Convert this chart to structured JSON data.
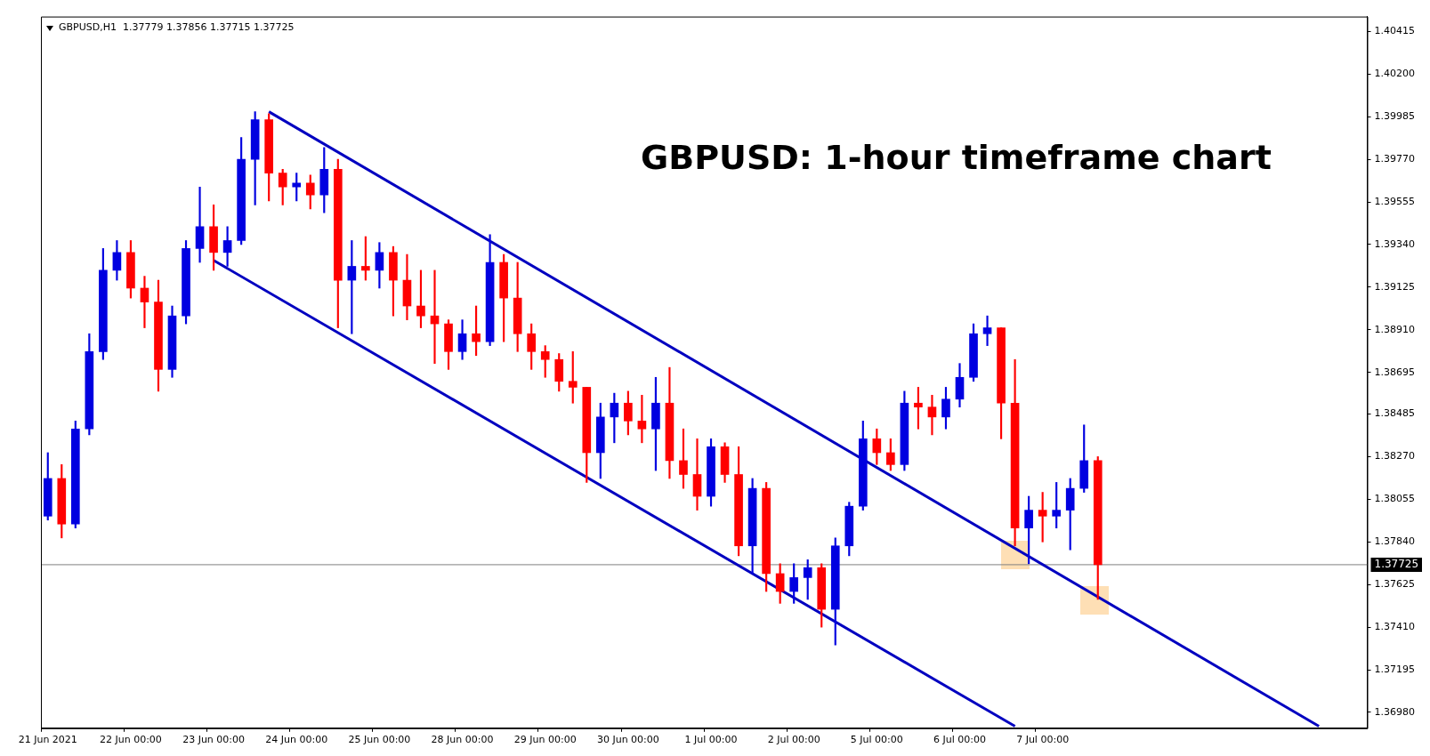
{
  "chart_data": {
    "type": "candlestick",
    "title": "GBPUSD: 1-hour timeframe chart",
    "subtitle": "GBPUSD,H1  1.37779 1.37856 1.37715 1.37725",
    "categories": [
      "21 Jun 2021",
      null,
      null,
      null,
      null,
      null,
      "22 Jun 00:00",
      null,
      null,
      null,
      null,
      null,
      "23 Jun 00:00",
      null,
      null,
      null,
      null,
      null,
      "24 Jun 00:00",
      null,
      null,
      null,
      null,
      null,
      "25 Jun 00:00",
      null,
      null,
      null,
      null,
      null,
      "28 Jun 00:00",
      null,
      null,
      null,
      null,
      null,
      "29 Jun 00:00",
      null,
      null,
      null,
      null,
      null,
      "30 Jun 00:00",
      null,
      null,
      null,
      null,
      null,
      "1 Jul 00:00",
      null,
      null,
      null,
      null,
      null,
      "2 Jul 00:00",
      null,
      null,
      null,
      null,
      null,
      "5 Jul 00:00",
      null,
      null,
      null,
      null,
      null,
      "6 Jul 00:00",
      null,
      null,
      null,
      null,
      null,
      "7 Jul 00:00",
      null,
      null,
      null,
      null,
      null,
      null,
      null,
      null,
      null,
      null,
      null,
      null,
      null,
      null,
      null,
      null,
      null,
      null,
      null,
      null,
      null,
      null,
      null
    ],
    "ohlc": [
      [
        1.3797,
        1.3829,
        1.3795,
        1.3816
      ],
      [
        1.3816,
        1.3823,
        1.3786,
        1.3793
      ],
      [
        1.3793,
        1.3845,
        1.3791,
        1.3841
      ],
      [
        1.3841,
        1.3889,
        1.3838,
        1.388
      ],
      [
        1.388,
        1.3932,
        1.3876,
        1.3921
      ],
      [
        1.3921,
        1.3936,
        1.3916,
        1.393
      ],
      [
        1.393,
        1.3936,
        1.3907,
        1.3912
      ],
      [
        1.3912,
        1.3918,
        1.3892,
        1.3905
      ],
      [
        1.3905,
        1.3916,
        1.386,
        1.3871
      ],
      [
        1.3871,
        1.3903,
        1.3867,
        1.3898
      ],
      [
        1.3898,
        1.3936,
        1.3894,
        1.3932
      ],
      [
        1.3932,
        1.3963,
        1.3925,
        1.3943
      ],
      [
        1.3943,
        1.3954,
        1.3921,
        1.393
      ],
      [
        1.393,
        1.3943,
        1.3923,
        1.3936
      ],
      [
        1.3936,
        1.3988,
        1.3934,
        1.3977
      ],
      [
        1.3977,
        1.4001,
        1.3954,
        1.3997
      ],
      [
        1.3997,
        1.4,
        1.3956,
        1.397
      ],
      [
        1.397,
        1.3972,
        1.3954,
        1.3963
      ],
      [
        1.3963,
        1.397,
        1.3956,
        1.3965
      ],
      [
        1.3965,
        1.3969,
        1.3952,
        1.3959
      ],
      [
        1.3959,
        1.3983,
        1.395,
        1.3972
      ],
      [
        1.3972,
        1.3977,
        1.3892,
        1.3916
      ],
      [
        1.3916,
        1.3936,
        1.3889,
        1.3923
      ],
      [
        1.3923,
        1.3938,
        1.3916,
        1.3921
      ],
      [
        1.3921,
        1.3935,
        1.3912,
        1.393
      ],
      [
        1.393,
        1.3933,
        1.3898,
        1.3916
      ],
      [
        1.3916,
        1.3929,
        1.3896,
        1.3903
      ],
      [
        1.3903,
        1.3921,
        1.3892,
        1.3898
      ],
      [
        1.3898,
        1.3921,
        1.3874,
        1.3894
      ],
      [
        1.3894,
        1.3896,
        1.3871,
        1.388
      ],
      [
        1.388,
        1.3896,
        1.3876,
        1.3889
      ],
      [
        1.3889,
        1.3903,
        1.3878,
        1.3885
      ],
      [
        1.3885,
        1.3939,
        1.3883,
        1.3925
      ],
      [
        1.3925,
        1.3929,
        1.3885,
        1.3907
      ],
      [
        1.3907,
        1.3925,
        1.388,
        1.3889
      ],
      [
        1.3889,
        1.3894,
        1.3871,
        1.388
      ],
      [
        1.388,
        1.3883,
        1.3867,
        1.3876
      ],
      [
        1.3876,
        1.3879,
        1.386,
        1.3865
      ],
      [
        1.3865,
        1.388,
        1.3854,
        1.3862
      ],
      [
        1.3862,
        1.3862,
        1.3814,
        1.3829
      ],
      [
        1.3829,
        1.3854,
        1.3816,
        1.3847
      ],
      [
        1.3847,
        1.3859,
        1.3834,
        1.3854
      ],
      [
        1.3854,
        1.386,
        1.3838,
        1.3845
      ],
      [
        1.3845,
        1.3858,
        1.3834,
        1.3841
      ],
      [
        1.3841,
        1.3867,
        1.382,
        1.3854
      ],
      [
        1.3854,
        1.3872,
        1.3816,
        1.3825
      ],
      [
        1.3825,
        1.3841,
        1.3811,
        1.3818
      ],
      [
        1.3818,
        1.3836,
        1.38,
        1.3807
      ],
      [
        1.3807,
        1.3836,
        1.3802,
        1.3832
      ],
      [
        1.3832,
        1.3834,
        1.3814,
        1.3818
      ],
      [
        1.3818,
        1.3832,
        1.3777,
        1.3782
      ],
      [
        1.3782,
        1.3816,
        1.3768,
        1.3811
      ],
      [
        1.3811,
        1.3814,
        1.3759,
        1.3768
      ],
      [
        1.3768,
        1.3773,
        1.3753,
        1.3759
      ],
      [
        1.3759,
        1.3773,
        1.3753,
        1.3766
      ],
      [
        1.3766,
        1.3775,
        1.3755,
        1.3771
      ],
      [
        1.3771,
        1.3773,
        1.3741,
        1.375
      ],
      [
        1.375,
        1.3786,
        1.3732,
        1.3782
      ],
      [
        1.3782,
        1.3804,
        1.3777,
        1.3802
      ],
      [
        1.3802,
        1.3845,
        1.38,
        1.3836
      ],
      [
        1.3836,
        1.3841,
        1.3823,
        1.3829
      ],
      [
        1.3829,
        1.3836,
        1.382,
        1.3823
      ],
      [
        1.3823,
        1.386,
        1.382,
        1.3854
      ],
      [
        1.3854,
        1.3862,
        1.3841,
        1.3852
      ],
      [
        1.3852,
        1.3858,
        1.3838,
        1.3847
      ],
      [
        1.3847,
        1.3862,
        1.3841,
        1.3856
      ],
      [
        1.3856,
        1.3874,
        1.3852,
        1.3867
      ],
      [
        1.3867,
        1.3894,
        1.3865,
        1.3889
      ],
      [
        1.3889,
        1.3898,
        1.3883,
        1.3892
      ],
      [
        1.3892,
        1.3892,
        1.3836,
        1.3854
      ],
      [
        1.3854,
        1.3876,
        1.3782,
        1.3791
      ],
      [
        1.3791,
        1.3807,
        1.3773,
        1.38
      ],
      [
        1.38,
        1.3809,
        1.3784,
        1.3797
      ],
      [
        1.3797,
        1.3814,
        1.3791,
        1.38
      ],
      [
        1.38,
        1.3816,
        1.378,
        1.3811
      ],
      [
        1.3811,
        1.3843,
        1.3809,
        1.3825
      ],
      [
        1.3825,
        1.3827,
        1.3755,
        1.37725
      ],
      null,
      null,
      null,
      null,
      null,
      null,
      null,
      null,
      null,
      null,
      null,
      null,
      null,
      null,
      null,
      null,
      null,
      null,
      null
    ],
    "colors": [
      "#0000e0",
      "#ff0000",
      "#0000e0",
      "#0000e0",
      "#0000e0",
      "#0000e0",
      "#ff0000",
      "#ff0000",
      "#ff0000",
      "#0000e0",
      "#0000e0",
      "#0000e0",
      "#ff0000",
      "#0000e0",
      "#0000e0",
      "#0000e0",
      "#ff0000",
      "#ff0000",
      "#0000e0",
      "#ff0000",
      "#0000e0",
      "#ff0000",
      "#0000e0",
      "#ff0000",
      "#0000e0",
      "#ff0000",
      "#ff0000",
      "#ff0000",
      "#ff0000",
      "#ff0000",
      "#0000e0",
      "#ff0000",
      "#0000e0",
      "#ff0000",
      "#ff0000",
      "#ff0000",
      "#ff0000",
      "#ff0000",
      "#ff0000",
      "#ff0000",
      "#0000e0",
      "#0000e0",
      "#ff0000",
      "#ff0000",
      "#0000e0",
      "#ff0000",
      "#ff0000",
      "#ff0000",
      "#0000e0",
      "#ff0000",
      "#ff0000",
      "#0000e0",
      "#ff0000",
      "#ff0000",
      "#0000e0",
      "#0000e0",
      "#ff0000",
      "#0000e0",
      "#0000e0",
      "#0000e0",
      "#ff0000",
      "#ff0000",
      "#0000e0",
      "#ff0000",
      "#ff0000",
      "#0000e0",
      "#0000e0",
      "#0000e0",
      "#0000e0",
      "#ff0000",
      "#ff0000",
      "#0000e0",
      "#ff0000",
      "#0000e0",
      "#0000e0",
      "#0000e0",
      "#ff0000",
      null,
      null,
      null,
      null,
      null,
      null,
      null,
      null,
      null,
      null,
      null,
      null,
      null,
      null,
      null,
      null,
      null,
      null,
      null
    ],
    "series": [
      {
        "type": "line",
        "color": "#0000c0",
        "values": [
          null,
          null,
          null,
          null,
          null,
          null,
          null,
          null,
          null,
          null,
          null,
          null,
          null,
          null,
          null,
          null,
          1.4001,
          null,
          null,
          null,
          null,
          null,
          null,
          null,
          null,
          null,
          null,
          null,
          null,
          null,
          null,
          null,
          null,
          null,
          null,
          null,
          null,
          null,
          null,
          null,
          null,
          null,
          null,
          null,
          null,
          null,
          null,
          null,
          null,
          null,
          null,
          null,
          null,
          null,
          null,
          null,
          null,
          null,
          null,
          null,
          null,
          null,
          null,
          null,
          null,
          null,
          null,
          null,
          null,
          null,
          null,
          null,
          null,
          null,
          null,
          null,
          null,
          null,
          null,
          null,
          null,
          null,
          null,
          null,
          null,
          null,
          null,
          null,
          null,
          null,
          null,
          null,
          1.3691,
          null,
          null,
          null
        ]
      },
      {
        "type": "line",
        "color": "#0000c0",
        "values": [
          null,
          null,
          null,
          null,
          null,
          null,
          null,
          null,
          null,
          null,
          null,
          null,
          1.3926,
          null,
          null,
          null,
          null,
          null,
          null,
          null,
          null,
          null,
          null,
          null,
          null,
          null,
          null,
          null,
          null,
          null,
          null,
          null,
          null,
          null,
          null,
          null,
          null,
          null,
          null,
          null,
          null,
          null,
          null,
          null,
          null,
          null,
          null,
          null,
          null,
          null,
          null,
          null,
          null,
          null,
          null,
          null,
          null,
          null,
          null,
          null,
          null,
          null,
          null,
          null,
          null,
          null,
          null,
          null,
          null,
          null,
          1.3691,
          null,
          null,
          null,
          null,
          null,
          null,
          null,
          null,
          null,
          null,
          null,
          null,
          null,
          null,
          null,
          null,
          null,
          null,
          null,
          null,
          null,
          null,
          null,
          null,
          null
        ]
      }
    ],
    "ylim": [
      1.369,
      1.4049
    ],
    "yticks": [
      {
        "value": 1.3698,
        "label": "1.36980"
      },
      {
        "value": 1.37195,
        "label": "1.37195"
      },
      {
        "value": 1.3741,
        "label": "1.37410"
      },
      {
        "value": 1.37625,
        "label": "1.37625"
      },
      {
        "value": 1.3784,
        "label": "1.37840"
      },
      {
        "value": 1.38055,
        "label": "1.38055"
      },
      {
        "value": 1.3827,
        "label": "1.38270"
      },
      {
        "value": 1.38485,
        "label": "1.38485"
      },
      {
        "value": 1.38695,
        "label": "1.38695"
      },
      {
        "value": 1.3891,
        "label": "1.38910"
      },
      {
        "value": 1.39125,
        "label": "1.39125"
      },
      {
        "value": 1.3934,
        "label": "1.39340"
      },
      {
        "value": 1.39555,
        "label": "1.39555"
      },
      {
        "value": 1.3977,
        "label": "1.39770"
      },
      {
        "value": 1.39985,
        "label": "1.39985"
      },
      {
        "value": 1.402,
        "label": "1.40200"
      },
      {
        "value": 1.40415,
        "label": "1.40415"
      }
    ],
    "ref_lines": [
      {
        "axis": "y",
        "value": 1.37725,
        "label": "1.37725",
        "color": "#808080"
      }
    ]
  }
}
